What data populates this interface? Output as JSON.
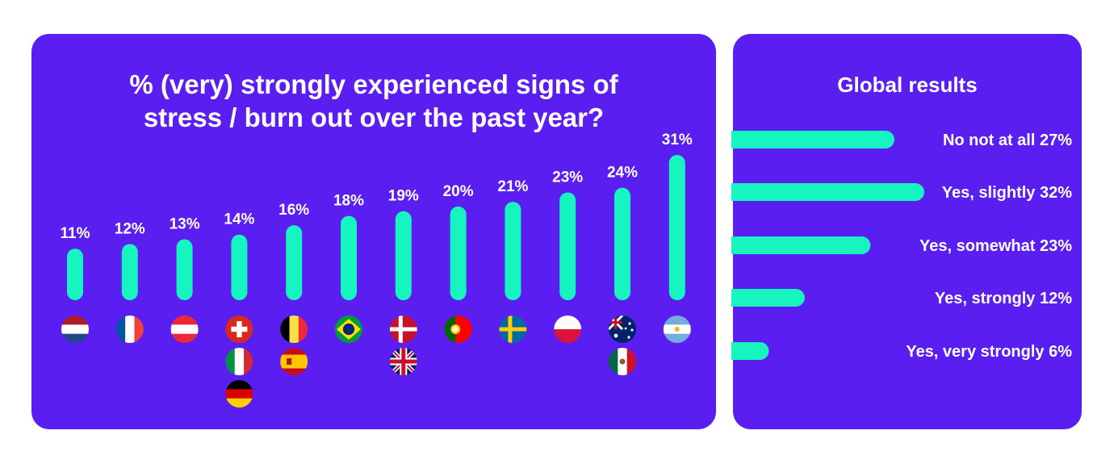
{
  "colors": {
    "panel": "#5b1ef0",
    "bar": "#16f5c0",
    "text": "#ffffff"
  },
  "chart_data": [
    {
      "type": "bar",
      "title": "% (very) strongly experienced signs of stress / burn out over the past year?",
      "title_lines": [
        "% (very) strongly experienced signs of",
        "stress / burn out over the past year?"
      ],
      "ylim": [
        0,
        31
      ],
      "grid": false,
      "categories": [
        "11%",
        "12%",
        "13%",
        "14%",
        "16%",
        "18%",
        "19%",
        "20%",
        "21%",
        "23%",
        "24%",
        "31%"
      ],
      "values": [
        11,
        12,
        13,
        14,
        16,
        18,
        19,
        20,
        21,
        23,
        24,
        31
      ],
      "labels": [
        "11%",
        "12%",
        "13%",
        "14%",
        "16%",
        "18%",
        "19%",
        "20%",
        "21%",
        "23%",
        "24%",
        "31%"
      ],
      "flags": [
        [
          "netherlands-flag-icon"
        ],
        [
          "france-flag-icon"
        ],
        [
          "austria-flag-icon"
        ],
        [
          "switzerland-flag-icon",
          "italy-flag-icon",
          "germany-flag-icon"
        ],
        [
          "belgium-flag-icon",
          "spain-flag-icon"
        ],
        [
          "brazil-flag-icon"
        ],
        [
          "denmark-flag-icon",
          "uk-flag-icon"
        ],
        [
          "portugal-flag-icon"
        ],
        [
          "sweden-flag-icon"
        ],
        [
          "poland-flag-icon"
        ],
        [
          "australia-flag-icon",
          "mexico-flag-icon"
        ],
        [
          "argentina-flag-icon"
        ]
      ]
    },
    {
      "type": "bar",
      "orientation": "horizontal",
      "title": "Global results",
      "categories": [
        "No not at all",
        "Yes, slightly",
        "Yes, somewhat",
        "Yes, strongly",
        "Yes, very strongly"
      ],
      "values": [
        27,
        32,
        23,
        12,
        6
      ],
      "labels": [
        "No not at all 27%",
        "Yes, slightly 32%",
        "Yes, somewhat 23%",
        "Yes, strongly 12%",
        "Yes, very strongly 6%"
      ],
      "xlim": [
        0,
        32
      ]
    }
  ]
}
